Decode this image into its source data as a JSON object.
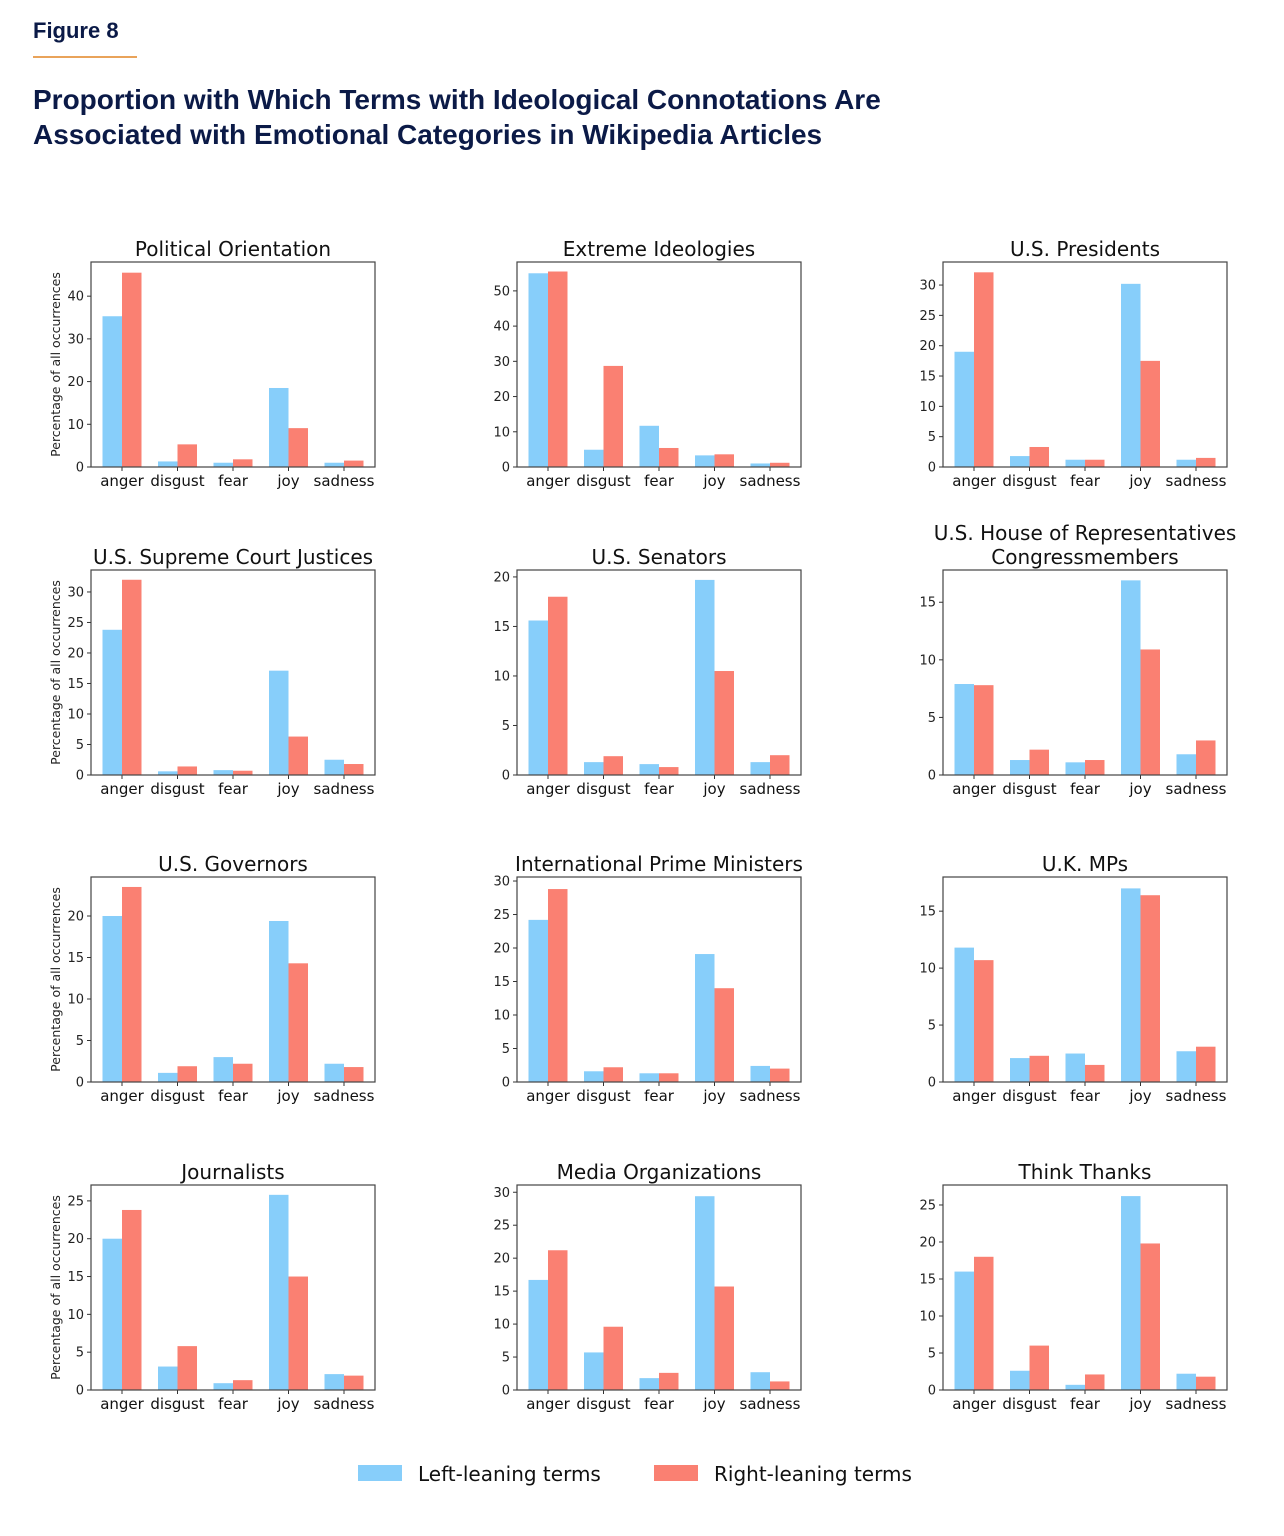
{
  "figure_label": "Figure 8",
  "title_lines": [
    "Proportion with Which Terms with Ideological Connotations Are",
    "Associated with Emotional Categories in Wikipedia Articles"
  ],
  "colors": {
    "left": "#87cefa",
    "right": "#fa8072",
    "title": "#0b1a47",
    "rule": "#e9a35a"
  },
  "chart_data": {
    "type": "bar",
    "categories": [
      "anger",
      "disgust",
      "fear",
      "joy",
      "sadness"
    ],
    "ylabel": "Percentage of all occurrences",
    "legend": {
      "placement": "bottom",
      "entries": [
        "Left-leaning terms",
        "Right-leaning terms"
      ]
    },
    "panels": [
      {
        "title": [
          "Political Orientation"
        ],
        "ylim": [
          0,
          48
        ],
        "ystep": 10,
        "series": [
          {
            "name": "Left-leaning terms",
            "values": [
              35.3,
              1.3,
              1.0,
              18.5,
              1.0
            ]
          },
          {
            "name": "Right-leaning terms",
            "values": [
              45.5,
              5.3,
              1.8,
              9.1,
              1.5
            ]
          }
        ]
      },
      {
        "title": [
          "Extreme Ideologies"
        ],
        "ylim": [
          0,
          58.2
        ],
        "ystep": 10,
        "series": [
          {
            "name": "Left-leaning terms",
            "values": [
              55.0,
              4.9,
              11.7,
              3.3,
              1.0
            ]
          },
          {
            "name": "Right-leaning terms",
            "values": [
              55.5,
              28.7,
              5.4,
              3.6,
              1.2
            ]
          }
        ]
      },
      {
        "title": [
          "U.S. Presidents"
        ],
        "ylim": [
          0,
          33.8
        ],
        "ystep": 5,
        "series": [
          {
            "name": "Left-leaning terms",
            "values": [
              19.0,
              1.8,
              1.2,
              30.2,
              1.2
            ]
          },
          {
            "name": "Right-leaning terms",
            "values": [
              32.1,
              3.3,
              1.2,
              17.5,
              1.5
            ]
          }
        ]
      },
      {
        "title": [
          "U.S. Supreme Court Justices"
        ],
        "ylim": [
          0,
          33.6
        ],
        "ystep": 5,
        "series": [
          {
            "name": "Left-leaning terms",
            "values": [
              23.8,
              0.6,
              0.8,
              17.1,
              2.5
            ]
          },
          {
            "name": "Right-leaning terms",
            "values": [
              32.0,
              1.4,
              0.7,
              6.3,
              1.8
            ]
          }
        ]
      },
      {
        "title": [
          "U.S. Senators"
        ],
        "ylim": [
          0,
          20.7
        ],
        "ystep": 5,
        "series": [
          {
            "name": "Left-leaning terms",
            "values": [
              15.6,
              1.3,
              1.1,
              19.7,
              1.3
            ]
          },
          {
            "name": "Right-leaning terms",
            "values": [
              18.0,
              1.9,
              0.8,
              10.5,
              2.0
            ]
          }
        ]
      },
      {
        "title": [
          "U.S. House of Representatives",
          "Congressmembers"
        ],
        "ylim": [
          0,
          17.8
        ],
        "ystep": 5,
        "series": [
          {
            "name": "Left-leaning terms",
            "values": [
              7.9,
              1.3,
              1.1,
              16.9,
              1.8
            ]
          },
          {
            "name": "Right-leaning terms",
            "values": [
              7.8,
              2.2,
              1.3,
              10.9,
              3.0
            ]
          }
        ]
      },
      {
        "title": [
          "U.S. Governors"
        ],
        "ylim": [
          0,
          24.7
        ],
        "ystep": 5,
        "series": [
          {
            "name": "Left-leaning terms",
            "values": [
              20.0,
              1.1,
              3.0,
              19.4,
              2.2
            ]
          },
          {
            "name": "Right-leaning terms",
            "values": [
              23.5,
              1.9,
              2.2,
              14.3,
              1.8
            ]
          }
        ]
      },
      {
        "title": [
          "International Prime Ministers"
        ],
        "ylim": [
          0,
          30.6
        ],
        "ystep": 5,
        "series": [
          {
            "name": "Left-leaning terms",
            "values": [
              24.2,
              1.6,
              1.3,
              19.1,
              2.4
            ]
          },
          {
            "name": "Right-leaning terms",
            "values": [
              28.8,
              2.2,
              1.3,
              14.0,
              2.0
            ]
          }
        ]
      },
      {
        "title": [
          "U.K. MPs"
        ],
        "ylim": [
          0,
          18.0
        ],
        "ystep": 5,
        "series": [
          {
            "name": "Left-leaning terms",
            "values": [
              11.8,
              2.1,
              2.5,
              17.0,
              2.7
            ]
          },
          {
            "name": "Right-leaning terms",
            "values": [
              10.7,
              2.3,
              1.5,
              16.4,
              3.1
            ]
          }
        ]
      },
      {
        "title": [
          "Journalists"
        ],
        "ylim": [
          0,
          27.1
        ],
        "ystep": 5,
        "series": [
          {
            "name": "Left-leaning terms",
            "values": [
              20.0,
              3.1,
              0.9,
              25.8,
              2.1
            ]
          },
          {
            "name": "Right-leaning terms",
            "values": [
              23.8,
              5.8,
              1.3,
              15.0,
              1.9
            ]
          }
        ]
      },
      {
        "title": [
          "Media Organizations"
        ],
        "ylim": [
          0,
          31.1
        ],
        "ystep": 5,
        "series": [
          {
            "name": "Left-leaning terms",
            "values": [
              16.7,
              5.7,
              1.8,
              29.4,
              2.7
            ]
          },
          {
            "name": "Right-leaning terms",
            "values": [
              21.2,
              9.6,
              2.6,
              15.7,
              1.3
            ]
          }
        ]
      },
      {
        "title": [
          "Think Thanks"
        ],
        "ylim": [
          0,
          27.7
        ],
        "ystep": 5,
        "series": [
          {
            "name": "Left-leaning terms",
            "values": [
              16.0,
              2.6,
              0.7,
              26.2,
              2.2
            ]
          },
          {
            "name": "Right-leaning terms",
            "values": [
              18.0,
              6.0,
              2.1,
              19.8,
              1.8
            ]
          }
        ]
      }
    ]
  }
}
